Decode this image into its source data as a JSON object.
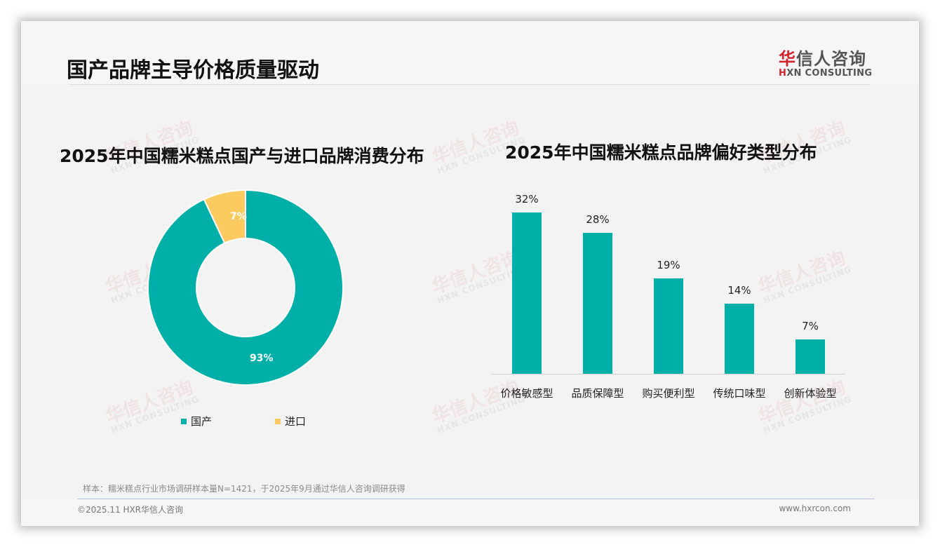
{
  "header": {
    "title": "国产品牌主导价格质量驱动",
    "logo": {
      "cn_accent": "华",
      "cn_rest": "信人咨询",
      "en_accent": "H",
      "en_rest": "XN CONSULTING"
    }
  },
  "watermark": {
    "cn": "华信人咨询",
    "en": "HXN CONSULTING"
  },
  "left_chart": {
    "title": "2025年中国糯米糕点国产与进口品牌消费分布",
    "legend": [
      {
        "label": "国产",
        "color": "#00afa8"
      },
      {
        "label": "进口",
        "color": "#fccb5f"
      }
    ],
    "labels": {
      "domestic": "93%",
      "imported": "7%"
    }
  },
  "right_chart": {
    "title": "2025年中国糯米糕点品牌偏好类型分布",
    "bars": [
      {
        "category": "价格敏感型",
        "label": "32%"
      },
      {
        "category": "品质保障型",
        "label": "28%"
      },
      {
        "category": "购买便利型",
        "label": "19%"
      },
      {
        "category": "传统口味型",
        "label": "14%"
      },
      {
        "category": "创新体验型",
        "label": "7%"
      }
    ]
  },
  "footer": {
    "note": "样本：糯米糕点行业市场调研样本量N=1421，于2025年9月通过华信人咨询调研获得",
    "copyright": "©2025.11 HXR华信人咨询",
    "site": "www.hxrcon.com"
  },
  "colors": {
    "teal": "#00afa8",
    "yellow": "#fccb5f",
    "background": "#f3f3f3",
    "brand_red": "#d0232a"
  },
  "chart_data": [
    {
      "type": "pie",
      "subtype": "donut",
      "title": "2025年中国糯米糕点国产与进口品牌消费分布",
      "categories": [
        "国产",
        "进口"
      ],
      "values": [
        93,
        7
      ],
      "unit": "%",
      "colors": [
        "#00afa8",
        "#fccb5f"
      ],
      "legend_position": "bottom"
    },
    {
      "type": "bar",
      "title": "2025年中国糯米糕点品牌偏好类型分布",
      "categories": [
        "价格敏感型",
        "品质保障型",
        "购买便利型",
        "传统口味型",
        "创新体验型"
      ],
      "values": [
        32,
        28,
        19,
        14,
        7
      ],
      "unit": "%",
      "xlabel": "",
      "ylabel": "",
      "ylim": [
        0,
        35
      ],
      "grid": false,
      "color": "#00afa8"
    }
  ]
}
